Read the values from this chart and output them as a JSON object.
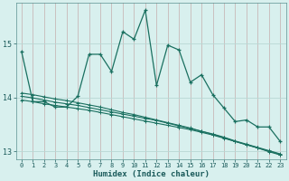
{
  "xlabel": "Humidex (Indice chaleur)",
  "background_color": "#d8f0ee",
  "grid_color_v": "#c8b8b8",
  "grid_color_h": "#b8d8d4",
  "line_color": "#1a7060",
  "xlim": [
    -0.5,
    23.5
  ],
  "ylim": [
    12.85,
    15.75
  ],
  "yticks": [
    13,
    14,
    15
  ],
  "xticks": [
    0,
    1,
    2,
    3,
    4,
    5,
    6,
    7,
    8,
    9,
    10,
    11,
    12,
    13,
    14,
    15,
    16,
    17,
    18,
    19,
    20,
    21,
    22,
    23
  ],
  "series1_x": [
    0,
    1,
    2,
    3,
    4,
    5,
    6,
    7,
    8,
    9,
    10,
    11,
    12,
    13,
    14,
    15,
    16,
    17,
    18,
    19,
    20,
    21,
    22,
    23
  ],
  "series1_y": [
    14.85,
    13.92,
    13.92,
    13.82,
    13.82,
    14.02,
    14.8,
    14.8,
    14.48,
    15.22,
    15.08,
    15.62,
    14.22,
    14.97,
    14.88,
    14.28,
    14.42,
    14.05,
    13.8,
    13.55,
    13.58,
    13.45,
    13.45,
    13.18
  ],
  "series2_x": [
    0,
    1,
    2,
    3,
    4,
    5,
    6,
    7,
    8,
    9,
    10,
    11,
    12,
    13,
    14,
    15,
    16,
    17,
    18,
    19,
    20,
    21,
    22,
    23
  ],
  "series2_y": [
    13.95,
    13.92,
    13.88,
    13.85,
    13.82,
    13.79,
    13.76,
    13.72,
    13.68,
    13.64,
    13.6,
    13.56,
    13.52,
    13.48,
    13.44,
    13.4,
    13.35,
    13.3,
    13.24,
    13.18,
    13.12,
    13.06,
    13.0,
    12.94
  ],
  "series3_x": [
    0,
    1,
    2,
    3,
    4,
    5,
    6,
    7,
    8,
    9,
    10,
    11,
    12,
    13,
    14,
    15,
    16,
    17,
    18,
    19,
    20,
    21,
    22,
    23
  ],
  "series3_y": [
    14.02,
    13.99,
    13.95,
    13.91,
    13.88,
    13.85,
    13.81,
    13.77,
    13.73,
    13.69,
    13.65,
    13.61,
    13.57,
    13.52,
    13.47,
    13.42,
    13.37,
    13.32,
    13.26,
    13.19,
    13.13,
    13.07,
    13.01,
    12.95
  ],
  "series4_x": [
    0,
    1,
    2,
    3,
    4,
    5,
    6,
    7,
    8,
    9,
    10,
    11,
    12,
    13,
    14,
    15,
    16,
    17,
    18,
    19,
    20,
    21,
    22,
    23
  ],
  "series4_y": [
    14.08,
    14.05,
    14.01,
    13.97,
    13.94,
    13.9,
    13.86,
    13.82,
    13.77,
    13.72,
    13.68,
    13.63,
    13.58,
    13.53,
    13.48,
    13.43,
    13.37,
    13.31,
    13.25,
    13.18,
    13.12,
    13.06,
    12.99,
    12.93
  ]
}
